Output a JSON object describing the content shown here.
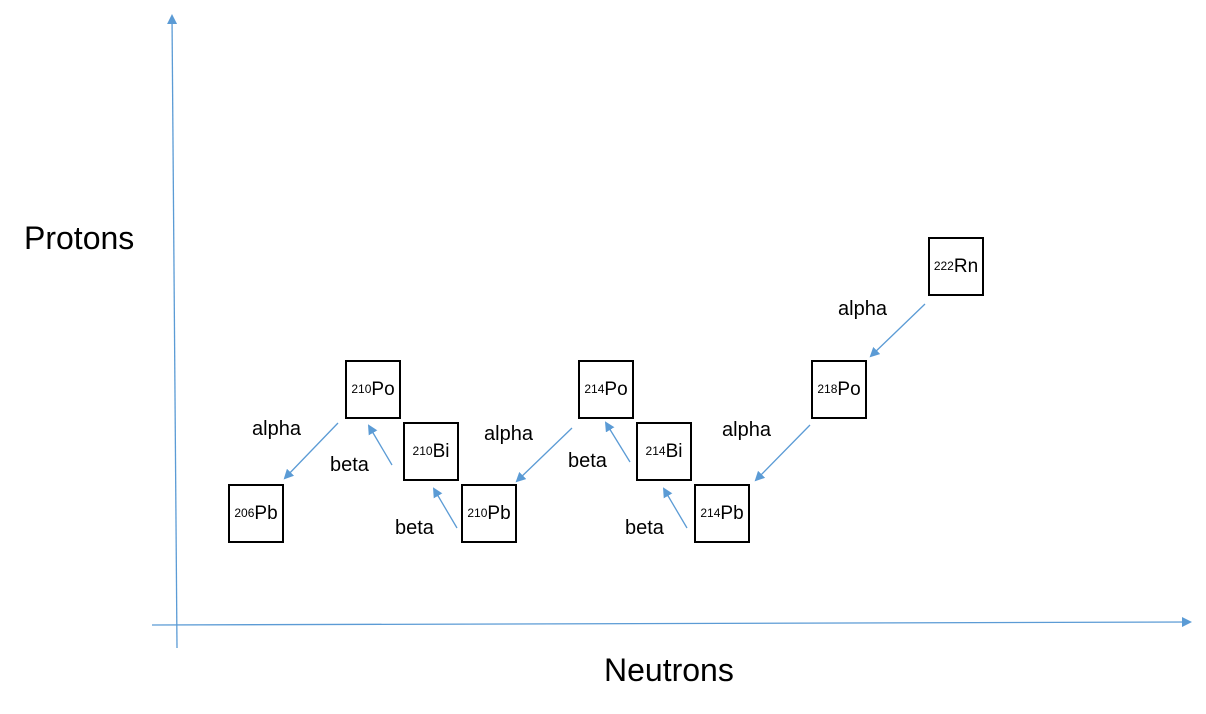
{
  "axes": {
    "y_label": "Protons",
    "x_label": "Neutrons",
    "color": "#5b9bd5"
  },
  "nuclides": [
    {
      "id": "rn222",
      "mass": "222",
      "symbol": "Rn"
    },
    {
      "id": "po218",
      "mass": "218",
      "symbol": "Po"
    },
    {
      "id": "pb214",
      "mass": "214",
      "symbol": "Pb"
    },
    {
      "id": "bi214",
      "mass": "214",
      "symbol": "Bi"
    },
    {
      "id": "po214",
      "mass": "214",
      "symbol": "Po"
    },
    {
      "id": "pb210",
      "mass": "210",
      "symbol": "Pb"
    },
    {
      "id": "bi210",
      "mass": "210",
      "symbol": "Bi"
    },
    {
      "id": "po210",
      "mass": "210",
      "symbol": "Po"
    },
    {
      "id": "pb206",
      "mass": "206",
      "symbol": "Pb"
    }
  ],
  "decays": [
    {
      "from": "Rn-222",
      "to": "Po-218",
      "label": "alpha"
    },
    {
      "from": "Po-218",
      "to": "Pb-214",
      "label": "alpha"
    },
    {
      "from": "Pb-214",
      "to": "Bi-214",
      "label": "beta"
    },
    {
      "from": "Bi-214",
      "to": "Po-214",
      "label": "beta"
    },
    {
      "from": "Po-214",
      "to": "Pb-210",
      "label": "alpha"
    },
    {
      "from": "Pb-210",
      "to": "Bi-210",
      "label": "beta"
    },
    {
      "from": "Bi-210",
      "to": "Po-210",
      "label": "beta"
    },
    {
      "from": "Po-210",
      "to": "Pb-206",
      "label": "alpha"
    }
  ]
}
